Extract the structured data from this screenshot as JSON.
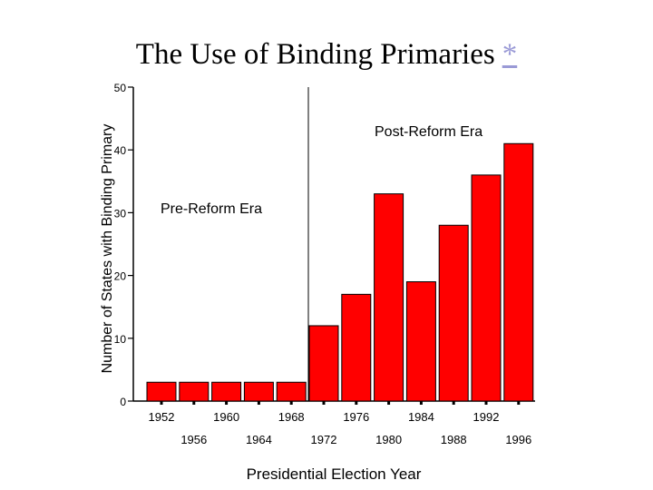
{
  "title": "The Use of Binding Primaries",
  "footnote_link": "*",
  "chart_data": {
    "type": "bar",
    "title": "The Use of Binding Primaries",
    "xlabel": "Presidential Election Year",
    "ylabel": "Number of States with Binding Primary",
    "ylim": [
      0,
      50
    ],
    "yticks": [
      0,
      10,
      20,
      30,
      40,
      50
    ],
    "categories": [
      "1952",
      "1956",
      "1960",
      "1964",
      "1968",
      "1972",
      "1976",
      "1980",
      "1984",
      "1988",
      "1992",
      "1996"
    ],
    "values": [
      3,
      3,
      3,
      3,
      3,
      12,
      17,
      33,
      19,
      28,
      36,
      41
    ],
    "annotations": [
      "Pre-Reform Era",
      "Post-Reform Era"
    ],
    "bar_color": "#ff0000"
  }
}
